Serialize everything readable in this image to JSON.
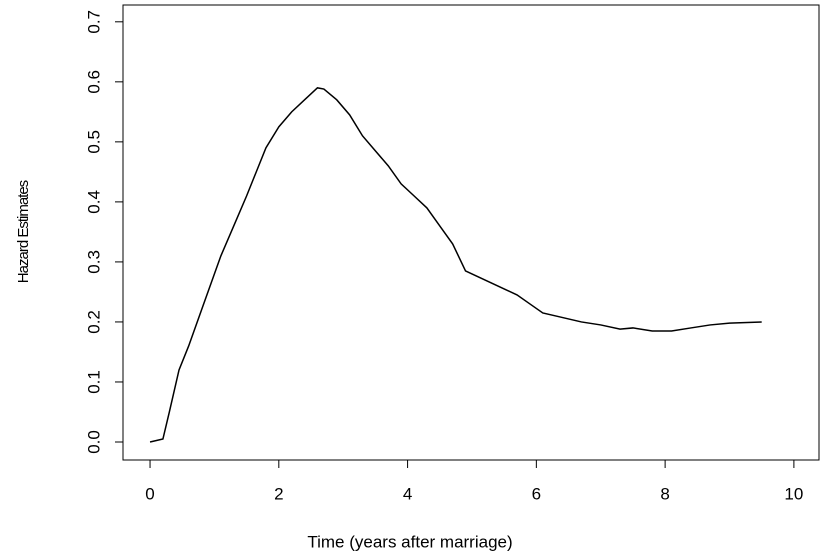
{
  "chart_data": {
    "type": "line",
    "xlabel": "Time (years after marriage)",
    "ylabel": "Hazard Estimates",
    "x": [
      0,
      0.2,
      0.3,
      0.45,
      0.6,
      0.8,
      1.0,
      1.1,
      1.3,
      1.5,
      1.65,
      1.8,
      2.0,
      2.2,
      2.4,
      2.6,
      2.7,
      2.9,
      3.1,
      3.3,
      3.5,
      3.7,
      3.9,
      4.1,
      4.3,
      4.5,
      4.7,
      4.9,
      5.1,
      5.3,
      5.5,
      5.7,
      5.9,
      6.1,
      6.3,
      6.5,
      6.7,
      7.0,
      7.3,
      7.5,
      7.8,
      8.1,
      8.4,
      8.7,
      9.0,
      9.5
    ],
    "series": [
      {
        "color": "#000000",
        "values": [
          0,
          0.005,
          0.05,
          0.12,
          0.16,
          0.22,
          0.28,
          0.31,
          0.36,
          0.41,
          0.45,
          0.49,
          0.525,
          0.55,
          0.57,
          0.59,
          0.588,
          0.57,
          0.545,
          0.51,
          0.485,
          0.46,
          0.43,
          0.41,
          0.39,
          0.36,
          0.33,
          0.285,
          0.275,
          0.265,
          0.255,
          0.245,
          0.23,
          0.215,
          0.21,
          0.205,
          0.2,
          0.195,
          0.188,
          0.19,
          0.185,
          0.185,
          0.19,
          0.195,
          0.198,
          0.2
        ]
      }
    ],
    "xlim": [
      -0.42,
      10.39
    ],
    "ylim": [
      -0.03,
      0.728
    ],
    "xticks": [
      0,
      2,
      4,
      6,
      8,
      10
    ],
    "yticks": [
      {
        "value": 0,
        "label": "0.0"
      },
      0.1,
      0.2,
      0.3,
      0.4,
      0.5,
      0.6,
      0.7
    ]
  }
}
